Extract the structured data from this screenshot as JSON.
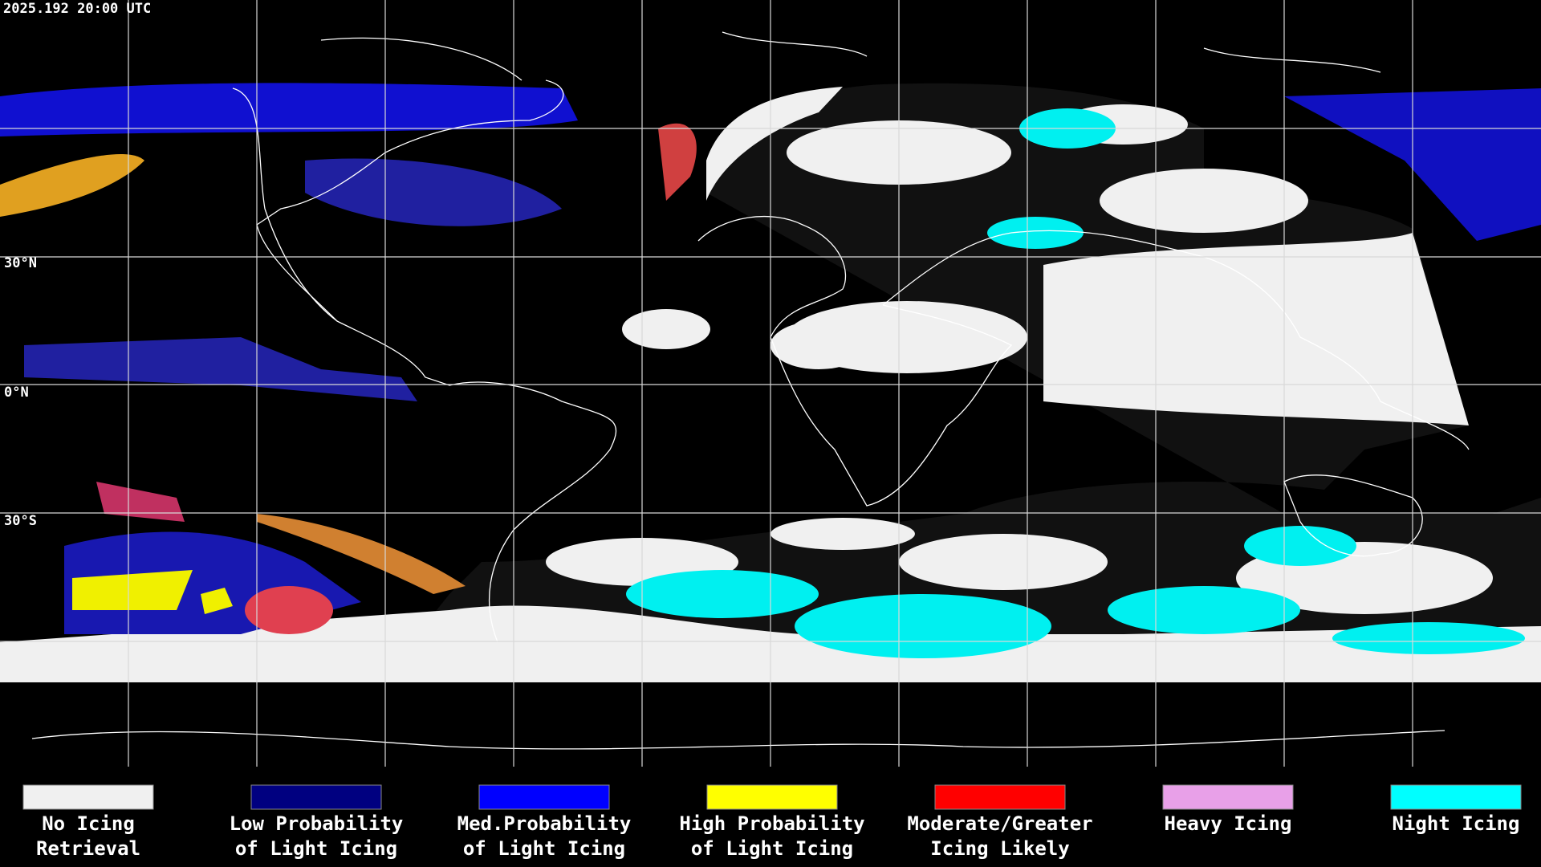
{
  "header": {
    "timestamp": "2025.192 20:00 UTC"
  },
  "grid_labels": [
    "30°N",
    "0°N",
    "30°S"
  ],
  "legend": [
    {
      "color": "#f0f0f0",
      "lines": [
        "No Icing",
        "Retrieval"
      ]
    },
    {
      "color": "#000080",
      "lines": [
        "Low Probability",
        "of Light Icing"
      ]
    },
    {
      "color": "#0000ff",
      "lines": [
        "Med.Probability",
        "of Light Icing"
      ]
    },
    {
      "color": "#ffff00",
      "lines": [
        "High Probability",
        "of Light Icing"
      ]
    },
    {
      "color": "#ff0000",
      "lines": [
        "Moderate/Greater",
        "Icing Likely"
      ]
    },
    {
      "color": "#e8a0e8",
      "lines": [
        "Heavy Icing"
      ]
    },
    {
      "color": "#00ffff",
      "lines": [
        "Night Icing"
      ]
    }
  ]
}
